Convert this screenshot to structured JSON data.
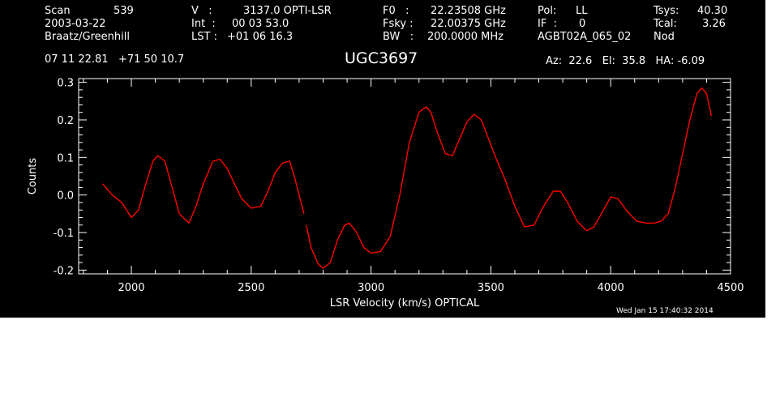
{
  "header": {
    "scan_label": "Scan",
    "scan_value": "539",
    "date": "2003-03-22",
    "observer": "Braatz/Greenhill",
    "v_label": "V   :",
    "v_value": "3137.0 OPTI-LSR",
    "int_label": "Int  :",
    "int_value": "00 03 53.0",
    "lst_label": "LST :",
    "lst_value": "+01 06 16.3",
    "f0_label": "F0   :",
    "f0_value": "22.23508 GHz",
    "fsky_label": "Fsky :",
    "fsky_value": "22.00375 GHz",
    "bw_label": "BW   :",
    "bw_value": "200.0000 MHz",
    "pol_label": "Pol:",
    "pol_value": "LL",
    "if_label": "IF  :",
    "if_value": "0",
    "project": "AGBT02A_065_02",
    "tsys_label": "Tsys:",
    "tsys_value": "40.30",
    "tcal_label": "Tcal:",
    "tcal_value": "3.26",
    "mode": "Nod",
    "coords": "07 11 22.81   +71 50 10.7",
    "source": "UGC3697",
    "az_el_ha": "Az:  22.6   El:  35.8   HA: -6.09",
    "timestamp": "Wed Jan 15 17:40:32 2014"
  },
  "chart_data": {
    "type": "line",
    "xlabel": "LSR Velocity (km/s) OPTICAL",
    "ylabel": "Counts",
    "xlim": [
      1780,
      4500
    ],
    "ylim": [
      -0.21,
      0.31
    ],
    "xticks": [
      2000,
      2500,
      3000,
      3500,
      4000,
      4500
    ],
    "yticks": [
      -0.2,
      -0.1,
      0.0,
      0.1,
      0.2,
      0.3
    ],
    "ytick_labels": [
      "-0.2",
      "-0.1",
      "0.0",
      "0.1",
      "0.2",
      "0.3"
    ],
    "grid": false,
    "series": [
      {
        "color": "#ff0000",
        "x": [
          1880,
          1920,
          1960,
          2000,
          2030,
          2060,
          2090,
          2110,
          2140,
          2170,
          2200,
          2240,
          2270,
          2300,
          2340,
          2370,
          2400,
          2430,
          2460,
          2500,
          2540,
          2570,
          2600,
          2630,
          2660,
          2680,
          2700,
          2720
        ],
        "y": [
          0.03,
          0.0,
          -0.02,
          -0.06,
          -0.04,
          0.03,
          0.09,
          0.105,
          0.09,
          0.02,
          -0.05,
          -0.075,
          -0.03,
          0.03,
          0.09,
          0.095,
          0.07,
          0.03,
          -0.01,
          -0.035,
          -0.03,
          0.01,
          0.06,
          0.085,
          0.09,
          0.05,
          0.0,
          -0.05
        ]
      },
      {
        "color": "#ff0000",
        "x": [
          2730,
          2750,
          2780,
          2800,
          2830,
          2860,
          2890,
          2910,
          2940,
          2970,
          3000,
          3040,
          3080,
          3120,
          3160,
          3200,
          3230,
          3250,
          3280,
          3310,
          3340,
          3370,
          3400,
          3430,
          3460,
          3490,
          3520,
          3560,
          3600,
          3640,
          3680,
          3720,
          3760,
          3790,
          3820,
          3860,
          3900,
          3930,
          3970,
          4000,
          4030,
          4070,
          4110,
          4150,
          4180,
          4210,
          4240,
          4270,
          4300,
          4330,
          4360,
          4380,
          4400,
          4420
        ],
        "y": [
          -0.08,
          -0.14,
          -0.185,
          -0.195,
          -0.18,
          -0.12,
          -0.08,
          -0.075,
          -0.1,
          -0.14,
          -0.155,
          -0.15,
          -0.11,
          0.0,
          0.14,
          0.22,
          0.235,
          0.22,
          0.16,
          0.11,
          0.105,
          0.15,
          0.195,
          0.215,
          0.2,
          0.15,
          0.1,
          0.04,
          -0.03,
          -0.085,
          -0.08,
          -0.03,
          0.01,
          0.01,
          -0.02,
          -0.07,
          -0.095,
          -0.085,
          -0.04,
          -0.005,
          -0.01,
          -0.045,
          -0.07,
          -0.075,
          -0.075,
          -0.07,
          -0.05,
          0.02,
          0.11,
          0.2,
          0.27,
          0.285,
          0.27,
          0.21
        ]
      }
    ]
  }
}
